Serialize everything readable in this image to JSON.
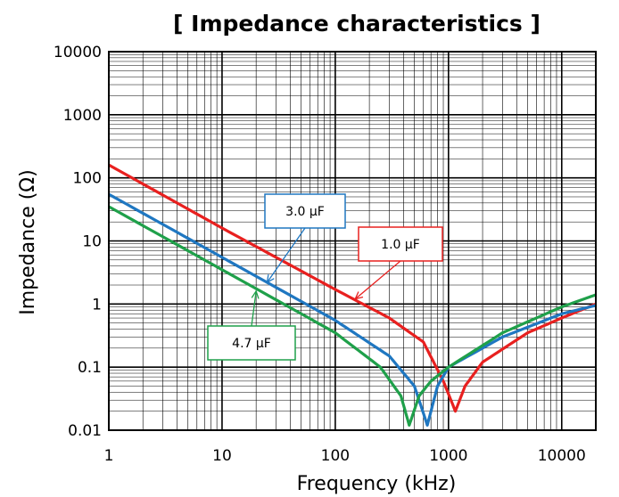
{
  "chart_data": {
    "type": "line",
    "title": "[ Impedance characteristics ]",
    "xlabel": "Frequency (kHz)",
    "ylabel": "Impedance (Ω)",
    "x_scale": "log",
    "y_scale": "log",
    "xlim": [
      1,
      20000
    ],
    "ylim": [
      0.01,
      10000
    ],
    "x_ticks": [
      1,
      10,
      100,
      1000,
      10000
    ],
    "x_tick_labels": [
      "1",
      "10",
      "100",
      "1000",
      "10000"
    ],
    "y_ticks": [
      0.01,
      0.1,
      1,
      10,
      100,
      1000,
      10000
    ],
    "y_tick_labels": [
      "0.01",
      "0.1",
      "1",
      "10",
      "100",
      "1000",
      "10000"
    ],
    "grid": true,
    "series": [
      {
        "name": "1.0 µF",
        "color": "#e8201f",
        "points": [
          [
            1,
            160
          ],
          [
            10,
            16
          ],
          [
            100,
            1.7
          ],
          [
            300,
            0.6
          ],
          [
            600,
            0.25
          ],
          [
            900,
            0.06
          ],
          [
            1150,
            0.02
          ],
          [
            1400,
            0.05
          ],
          [
            2000,
            0.12
          ],
          [
            5000,
            0.35
          ],
          [
            10000,
            0.6
          ],
          [
            20000,
            1.0
          ]
        ]
      },
      {
        "name": "3.0 µF",
        "color": "#1f77c1",
        "points": [
          [
            1,
            55
          ],
          [
            10,
            5.5
          ],
          [
            100,
            0.55
          ],
          [
            300,
            0.15
          ],
          [
            500,
            0.05
          ],
          [
            650,
            0.012
          ],
          [
            800,
            0.05
          ],
          [
            1000,
            0.1
          ],
          [
            3000,
            0.3
          ],
          [
            10000,
            0.7
          ],
          [
            20000,
            0.95
          ]
        ]
      },
      {
        "name": "4.7 µF",
        "color": "#1fa04a",
        "points": [
          [
            1,
            35
          ],
          [
            10,
            3.5
          ],
          [
            100,
            0.35
          ],
          [
            250,
            0.1
          ],
          [
            380,
            0.035
          ],
          [
            450,
            0.012
          ],
          [
            550,
            0.035
          ],
          [
            700,
            0.06
          ],
          [
            1000,
            0.1
          ],
          [
            3000,
            0.35
          ],
          [
            10000,
            0.9
          ],
          [
            20000,
            1.4
          ]
        ]
      }
    ],
    "callouts": [
      {
        "label": "3.0 µF",
        "series": "3.0 µF",
        "x": 25,
        "y": 2.2
      },
      {
        "label": "1.0 µF",
        "series": "1.0 µF",
        "x": 150,
        "y": 1.2
      },
      {
        "label": "4.7 µF",
        "series": "4.7 µF",
        "x": 20,
        "y": 1.6
      }
    ]
  }
}
